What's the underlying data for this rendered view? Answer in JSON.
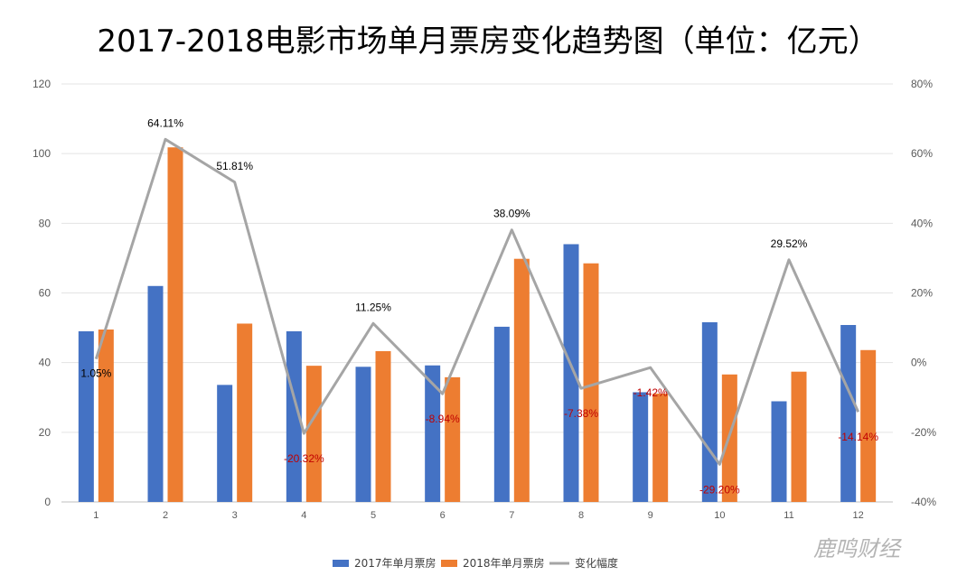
{
  "chart_data": {
    "type": "bar",
    "title": "2017-2018电影市场单月票房变化趋势图（单位：亿元）",
    "categories": [
      "1",
      "2",
      "3",
      "4",
      "5",
      "6",
      "7",
      "8",
      "9",
      "10",
      "11",
      "12"
    ],
    "series": [
      {
        "name": "2017年单月票房",
        "type": "bar",
        "axis": "left",
        "color": "#4472C4",
        "values": [
          49.0,
          62.0,
          33.6,
          49.0,
          38.8,
          39.2,
          50.3,
          74.0,
          31.5,
          51.6,
          28.9,
          50.8
        ]
      },
      {
        "name": "2018年单月票房",
        "type": "bar",
        "axis": "left",
        "color": "#ED7D31",
        "values": [
          49.5,
          101.8,
          51.2,
          39.1,
          43.3,
          35.8,
          69.8,
          68.5,
          31.1,
          36.6,
          37.4,
          43.6
        ]
      },
      {
        "name": "变化幅度",
        "type": "line",
        "axis": "right",
        "color": "#A5A5A5",
        "values": [
          1.05,
          64.11,
          51.81,
          -20.32,
          11.25,
          -8.94,
          38.09,
          -7.38,
          -1.42,
          -29.2,
          29.52,
          -14.14
        ],
        "labels": [
          "1.05%",
          "64.11%",
          "51.81%",
          "-20.32%",
          "11.25%",
          "-8.94%",
          "38.09%",
          "-7.38%",
          "-1.42%",
          "-29.20%",
          "29.52%",
          "-14.14%"
        ]
      }
    ],
    "y_left": {
      "ylim": [
        0,
        120
      ],
      "ticks": [
        "0",
        "20",
        "40",
        "60",
        "80",
        "100",
        "120"
      ]
    },
    "y_right": {
      "ylim": [
        -40,
        80
      ],
      "ticks": [
        "-40%",
        "-20%",
        "0%",
        "20%",
        "40%",
        "60%",
        "80%"
      ]
    },
    "grid": true,
    "legend": "bottom-center",
    "label_colors": {
      "positive": "#000000",
      "negative": "#C00000"
    }
  },
  "watermark": "鹿鸣财经"
}
